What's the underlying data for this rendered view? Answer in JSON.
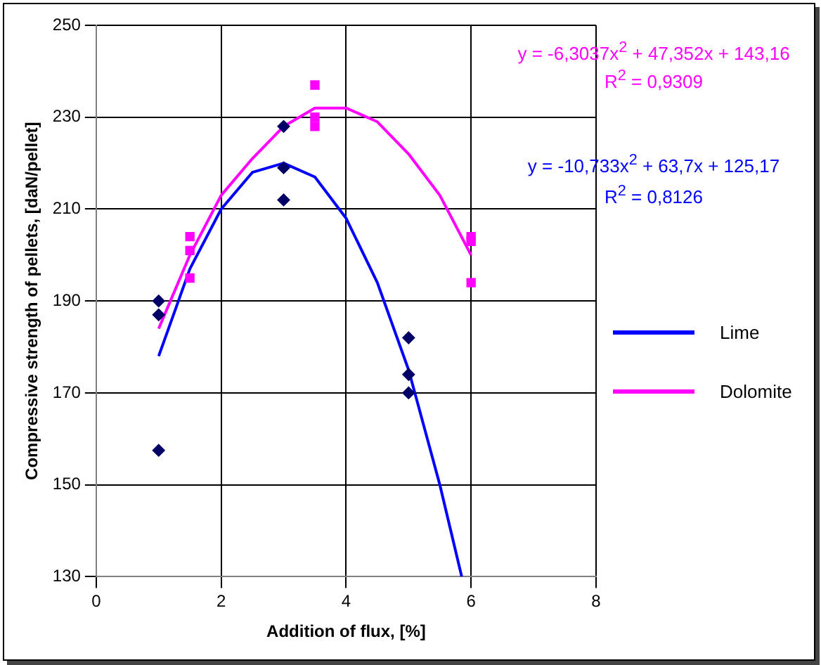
{
  "chart_data": {
    "type": "scatter",
    "xlabel": "Addition of flux, [%]",
    "ylabel": "Compressive strength of pellets, [daN/pellet]",
    "xlim": [
      0,
      8
    ],
    "xticks": [
      0,
      2,
      4,
      6,
      8
    ],
    "ylim": [
      130,
      250
    ],
    "yticks": [
      130,
      150,
      170,
      190,
      210,
      230,
      250
    ],
    "grid": true,
    "legend": "right",
    "series": [
      {
        "color": "#000066",
        "marker": "diamond",
        "x": [
          1,
          1,
          1,
          3,
          3,
          3,
          5,
          5,
          5
        ],
        "values": [
          190,
          187,
          157.5,
          228,
          219,
          212,
          182,
          174,
          170
        ]
      },
      {
        "color": "#ff00ff",
        "marker": "square",
        "x": [
          1.5,
          1.5,
          1.5,
          3.5,
          3.5,
          3.5,
          6,
          6,
          6
        ],
        "values": [
          204,
          201,
          195,
          237,
          230,
          228,
          204,
          203,
          194
        ]
      },
      {
        "type": "line",
        "name": "Lime",
        "color": "#0000ff",
        "marker": "none",
        "x": [
          1,
          1.5,
          2,
          2.5,
          3,
          3.5,
          4,
          4.5,
          5,
          5.5,
          5.85
        ],
        "values": [
          178,
          197,
          210,
          218,
          220,
          217,
          208,
          194,
          175,
          150,
          130
        ]
      },
      {
        "type": "line",
        "name": "Dolomite",
        "color": "#ff00ff",
        "marker": "none",
        "x": [
          1,
          1.5,
          2,
          2.5,
          3,
          3.5,
          4,
          4.5,
          5,
          5.5,
          6
        ],
        "values": [
          184,
          200,
          213,
          221,
          228,
          232,
          232,
          229,
          222,
          213,
          200
        ]
      }
    ],
    "annotations": [
      "y = -6,3037x$^{2}$ + 47,352x + 143,16",
      "R$^{2}$ = 0,9309",
      "y = -10,733x$^{2}$ + 63,7x + 125,17",
      "R$^{2}$ = 0,8126"
    ]
  }
}
